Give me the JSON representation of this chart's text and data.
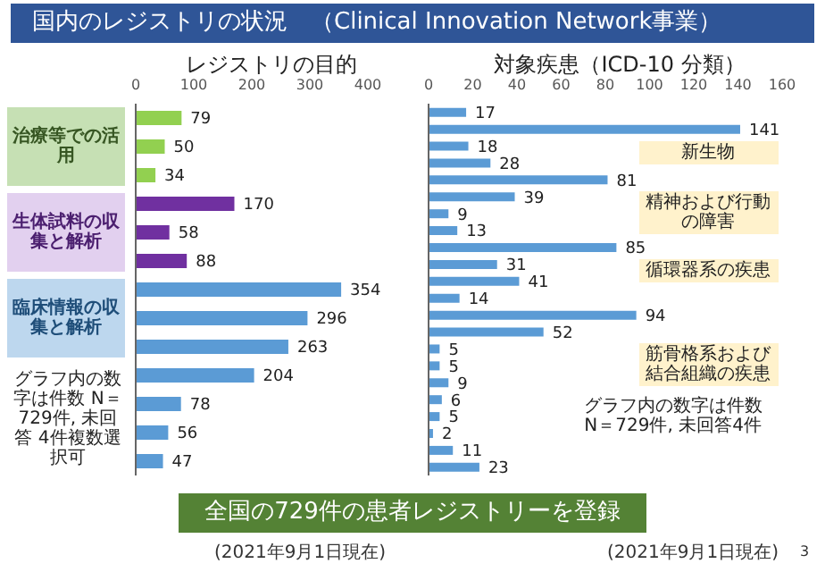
{
  "chart_data": [
    {
      "type": "bar",
      "orientation": "horizontal",
      "title": "レジストリの目的",
      "annotations": [
        "国内のレジストリの状況　（Clinical Innovation Network事業）",
        "治療等での活用",
        "生体試料の収集と解析",
        "臨床情報の収集と解析",
        "グラフ内の数字は件数 N＝729件, 未回答 4件複数選択可",
        "(2021年9月1日現在)",
        "全国の729件の患者レジストリーを登録",
        "3"
      ],
      "categories": [
        null,
        null,
        null,
        null,
        null,
        null,
        null,
        null,
        null,
        null,
        null,
        null,
        null
      ],
      "values": [
        79,
        50,
        34,
        170,
        58,
        88,
        354,
        296,
        263,
        204,
        78,
        56,
        47
      ],
      "colors": [
        "#92d050",
        "#92d050",
        "#92d050",
        "#7030a0",
        "#7030a0",
        "#7030a0",
        "#5b9bd5",
        "#5b9bd5",
        "#5b9bd5",
        "#5b9bd5",
        "#5b9bd5",
        "#5b9bd5",
        "#5b9bd5"
      ],
      "xlim": [
        0,
        400
      ],
      "xticks": [
        0,
        100,
        200,
        300,
        400
      ],
      "data_labels": true
    },
    {
      "type": "bar",
      "orientation": "horizontal",
      "title": "対象疾患（ICD-10 分類）",
      "annotations": [
        "新生物",
        "精神および行動の障害",
        "循環器系の疾患",
        "筋骨格系および結合組織の疾患",
        "グラフ内の数字は件数 N＝729件, 未回答4件",
        "(2021年9月1日現在)"
      ],
      "categories": [
        null,
        null,
        null,
        null,
        null,
        null,
        null,
        null,
        null,
        null,
        null,
        null,
        null,
        null,
        null,
        null,
        null,
        null,
        null,
        null,
        null,
        null
      ],
      "values": [
        17,
        141,
        18,
        28,
        81,
        39,
        9,
        13,
        85,
        31,
        41,
        14,
        94,
        52,
        5,
        5,
        9,
        6,
        5,
        2,
        11,
        23
      ],
      "color": "#5b9bd5",
      "xlim": [
        0,
        160
      ],
      "xticks": [
        0,
        20,
        40,
        60,
        80,
        100,
        120,
        140,
        160
      ],
      "data_labels": true
    }
  ]
}
